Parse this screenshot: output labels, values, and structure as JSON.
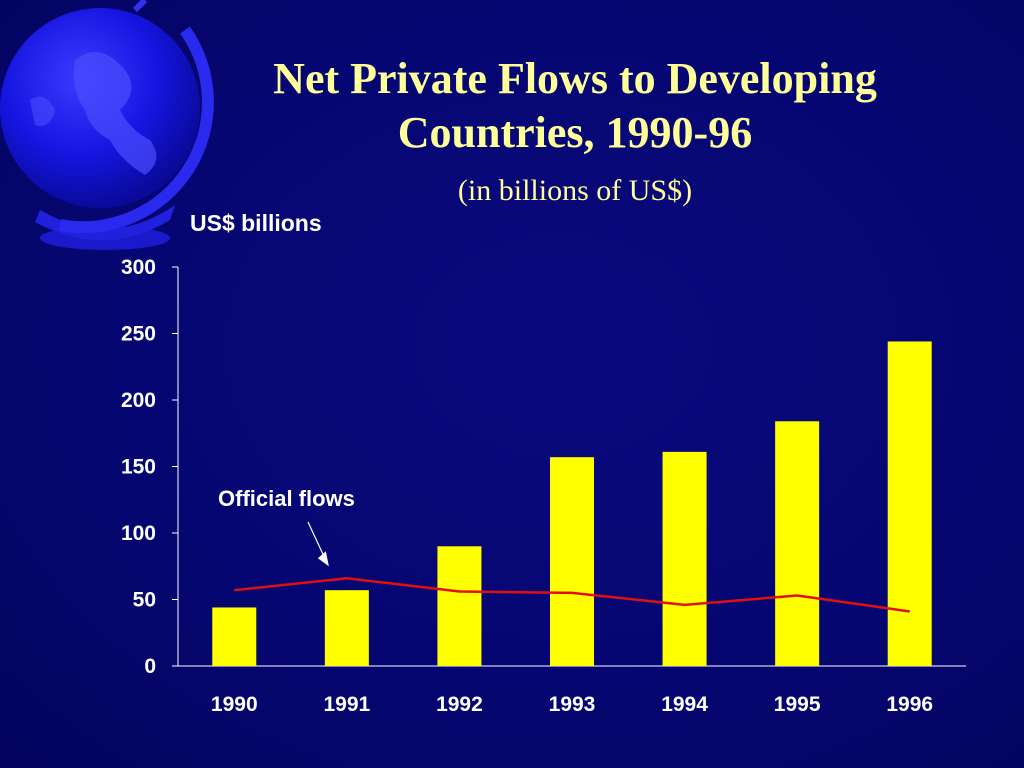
{
  "title": "Net Private Flows to Developing Countries, 1990-96",
  "subtitle": "(in billions of US$)",
  "colors": {
    "background": "#06066e",
    "title": "#ffff99",
    "bars": "#ffff00",
    "line": "#e01010",
    "text": "#ffffff"
  },
  "annotation": "Official flows",
  "chart_data": {
    "type": "bar",
    "title": "Net Private Flows to Developing Countries, 1990-96",
    "subtitle": "(in billions of US$)",
    "ylabel": "US$ billions",
    "xlabel": "",
    "categories": [
      "1990",
      "1991",
      "1992",
      "1993",
      "1994",
      "1995",
      "1996"
    ],
    "ylim": [
      0,
      300
    ],
    "yticks": [
      0,
      50,
      100,
      150,
      200,
      250,
      300
    ],
    "grid": false,
    "series": [
      {
        "type": "bar",
        "values": [
          44,
          57,
          90,
          157,
          161,
          184,
          244
        ]
      },
      {
        "type": "line",
        "values": [
          57,
          66,
          56,
          55,
          46,
          53,
          41
        ]
      }
    ],
    "annotations": [
      {
        "text": "Official flows",
        "points_to": "1991"
      }
    ]
  }
}
